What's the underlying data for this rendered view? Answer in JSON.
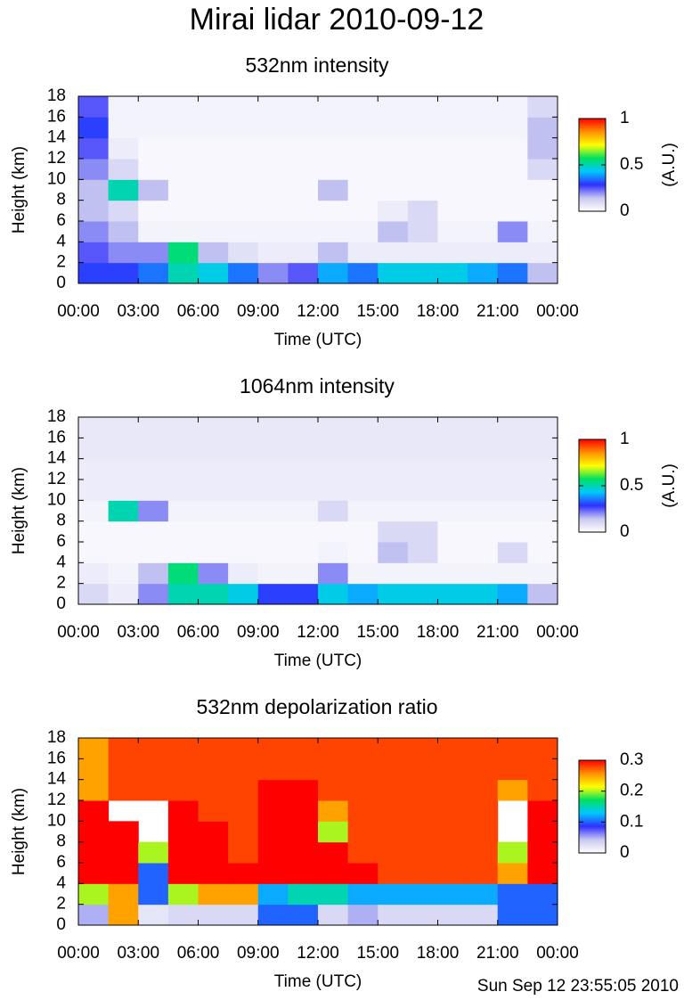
{
  "title": "Mirai lidar 2010-09-12",
  "timestamp": "Sun Sep 12 23:55:05 2010",
  "chart_data": [
    {
      "type": "heatmap",
      "title": "532nm intensity",
      "ylabel": "Height (km)",
      "xlabel": "Time (UTC)",
      "colorbar_label": "(A.U.)",
      "colormap": [
        "#ffffff",
        "#c8c8f0",
        "#3030ff",
        "#00c8ff",
        "#00e060",
        "#ffff00",
        "#ff9000",
        "#ff0000"
      ],
      "clim": [
        0,
        1
      ],
      "cticks": [
        0,
        0.5,
        1
      ],
      "xlim": [
        0,
        24
      ],
      "ylim": [
        0,
        18
      ],
      "xticks": [
        {
          "value": 0,
          "label": "00:00"
        },
        {
          "value": 3,
          "label": "03:00"
        },
        {
          "value": 6,
          "label": "06:00"
        },
        {
          "value": 9,
          "label": "09:00"
        },
        {
          "value": 12,
          "label": "12:00"
        },
        {
          "value": 15,
          "label": "15:00"
        },
        {
          "value": 18,
          "label": "18:00"
        },
        {
          "value": 21,
          "label": "21:00"
        },
        {
          "value": 24,
          "label": "00:00"
        }
      ],
      "yticks": [
        0,
        2,
        4,
        6,
        8,
        10,
        12,
        14,
        16,
        18
      ],
      "xbins": [
        0,
        1.5,
        3,
        4.5,
        6,
        7.5,
        9,
        10.5,
        12,
        13.5,
        15,
        16.5,
        18,
        19.5,
        21,
        22.5,
        24
      ],
      "ybins": [
        0,
        2,
        4,
        6,
        8,
        10,
        12,
        14,
        16,
        18
      ],
      "values": [
        [
          0.3,
          0.3,
          0.35,
          0.5,
          0.45,
          0.35,
          0.2,
          0.25,
          0.4,
          0.35,
          0.45,
          0.45,
          0.45,
          0.4,
          0.35,
          0.15
        ],
        [
          0.25,
          0.2,
          0.2,
          0.55,
          0.15,
          0.08,
          0.05,
          0.05,
          0.15,
          0.05,
          0.05,
          0.05,
          0.05,
          0.05,
          0.05,
          0.05
        ],
        [
          0.2,
          0.15,
          0.03,
          0.03,
          0.03,
          0.03,
          0.03,
          0.03,
          0.03,
          0.03,
          0.15,
          0.1,
          0.03,
          0.03,
          0.2,
          0.03
        ],
        [
          0.15,
          0.1,
          0.02,
          0.02,
          0.02,
          0.02,
          0.02,
          0.02,
          0.02,
          0.02,
          0.05,
          0.1,
          0.02,
          0.02,
          0.02,
          0.02
        ],
        [
          0.15,
          0.5,
          0.15,
          0.02,
          0.02,
          0.02,
          0.02,
          0.02,
          0.15,
          0.02,
          0.02,
          0.02,
          0.02,
          0.02,
          0.02,
          0.02
        ],
        [
          0.2,
          0.1,
          0.02,
          0.02,
          0.02,
          0.02,
          0.02,
          0.02,
          0.02,
          0.02,
          0.02,
          0.02,
          0.02,
          0.02,
          0.02,
          0.1
        ],
        [
          0.25,
          0.05,
          0.02,
          0.02,
          0.02,
          0.02,
          0.02,
          0.02,
          0.02,
          0.02,
          0.02,
          0.02,
          0.02,
          0.02,
          0.02,
          0.15
        ],
        [
          0.3,
          0.03,
          0.03,
          0.03,
          0.03,
          0.03,
          0.03,
          0.03,
          0.03,
          0.03,
          0.03,
          0.03,
          0.03,
          0.03,
          0.03,
          0.15
        ],
        [
          0.25,
          0.03,
          0.03,
          0.03,
          0.03,
          0.03,
          0.03,
          0.03,
          0.03,
          0.03,
          0.03,
          0.03,
          0.03,
          0.03,
          0.03,
          0.1
        ]
      ]
    },
    {
      "type": "heatmap",
      "title": "1064nm intensity",
      "ylabel": "Height (km)",
      "xlabel": "Time (UTC)",
      "colorbar_label": "(A.U.)",
      "colormap": [
        "#ffffff",
        "#c8c8f0",
        "#3030ff",
        "#00c8ff",
        "#00e060",
        "#ffff00",
        "#ff9000",
        "#ff0000"
      ],
      "clim": [
        0,
        1
      ],
      "cticks": [
        0,
        0.5,
        1
      ],
      "xlim": [
        0,
        24
      ],
      "ylim": [
        0,
        18
      ],
      "xticks": [
        {
          "value": 0,
          "label": "00:00"
        },
        {
          "value": 3,
          "label": "03:00"
        },
        {
          "value": 6,
          "label": "06:00"
        },
        {
          "value": 9,
          "label": "09:00"
        },
        {
          "value": 12,
          "label": "12:00"
        },
        {
          "value": 15,
          "label": "15:00"
        },
        {
          "value": 18,
          "label": "18:00"
        },
        {
          "value": 21,
          "label": "21:00"
        },
        {
          "value": 24,
          "label": "00:00"
        }
      ],
      "yticks": [
        0,
        2,
        4,
        6,
        8,
        10,
        12,
        14,
        16,
        18
      ],
      "xbins": [
        0,
        1.5,
        3,
        4.5,
        6,
        7.5,
        9,
        10.5,
        12,
        13.5,
        15,
        16.5,
        18,
        19.5,
        21,
        22.5,
        24
      ],
      "ybins": [
        0,
        2,
        4,
        6,
        8,
        10,
        12,
        14,
        16,
        18
      ],
      "values": [
        [
          0.1,
          0.05,
          0.2,
          0.5,
          0.5,
          0.45,
          0.3,
          0.3,
          0.45,
          0.4,
          0.45,
          0.45,
          0.45,
          0.45,
          0.4,
          0.15
        ],
        [
          0.05,
          0.03,
          0.15,
          0.55,
          0.2,
          0.05,
          0.03,
          0.03,
          0.2,
          0.03,
          0.03,
          0.03,
          0.03,
          0.03,
          0.03,
          0.03
        ],
        [
          0.02,
          0.02,
          0.02,
          0.02,
          0.02,
          0.02,
          0.02,
          0.02,
          0.03,
          0.02,
          0.15,
          0.1,
          0.02,
          0.02,
          0.1,
          0.02
        ],
        [
          0.02,
          0.02,
          0.02,
          0.02,
          0.02,
          0.02,
          0.02,
          0.02,
          0.02,
          0.02,
          0.1,
          0.1,
          0.02,
          0.02,
          0.02,
          0.02
        ],
        [
          0.03,
          0.5,
          0.2,
          0.03,
          0.03,
          0.03,
          0.03,
          0.03,
          0.1,
          0.03,
          0.03,
          0.03,
          0.03,
          0.03,
          0.03,
          0.03
        ],
        [
          0.05,
          0.05,
          0.05,
          0.05,
          0.05,
          0.05,
          0.05,
          0.05,
          0.05,
          0.05,
          0.05,
          0.05,
          0.05,
          0.05,
          0.05,
          0.05
        ],
        [
          0.05,
          0.05,
          0.05,
          0.05,
          0.05,
          0.05,
          0.05,
          0.05,
          0.05,
          0.05,
          0.05,
          0.05,
          0.05,
          0.05,
          0.05,
          0.05
        ],
        [
          0.06,
          0.06,
          0.06,
          0.06,
          0.06,
          0.06,
          0.06,
          0.06,
          0.06,
          0.06,
          0.06,
          0.06,
          0.06,
          0.06,
          0.06,
          0.06
        ],
        [
          0.06,
          0.06,
          0.06,
          0.06,
          0.06,
          0.06,
          0.06,
          0.06,
          0.06,
          0.06,
          0.06,
          0.06,
          0.06,
          0.06,
          0.06,
          0.06
        ]
      ]
    },
    {
      "type": "heatmap",
      "title": "532nm depolarization ratio",
      "ylabel": "Height (km)",
      "xlabel": "Time (UTC)",
      "colormap": [
        "#ffffff",
        "#c8c8f0",
        "#3030ff",
        "#00c8ff",
        "#00e060",
        "#ffff00",
        "#ff9000",
        "#ff0000"
      ],
      "clim": [
        0,
        0.3
      ],
      "cticks": [
        0,
        0.1,
        0.2,
        0.3
      ],
      "xlim": [
        0,
        24
      ],
      "ylim": [
        0,
        18
      ],
      "xticks": [
        {
          "value": 0,
          "label": "00:00"
        },
        {
          "value": 3,
          "label": "03:00"
        },
        {
          "value": 6,
          "label": "06:00"
        },
        {
          "value": 9,
          "label": "09:00"
        },
        {
          "value": 12,
          "label": "12:00"
        },
        {
          "value": 15,
          "label": "15:00"
        },
        {
          "value": 18,
          "label": "18:00"
        },
        {
          "value": 21,
          "label": "21:00"
        },
        {
          "value": 24,
          "label": "00:00"
        }
      ],
      "yticks": [
        0,
        2,
        4,
        6,
        8,
        10,
        12,
        14,
        16,
        18
      ],
      "xbins": [
        0,
        1.5,
        3,
        4.5,
        6,
        7.5,
        9,
        10.5,
        12,
        13.5,
        15,
        16.5,
        18,
        19.5,
        21,
        22.5,
        24
      ],
      "ybins": [
        0,
        2,
        4,
        6,
        8,
        10,
        12,
        14,
        16,
        18
      ],
      "values": [
        [
          0.05,
          0.25,
          0.02,
          0.03,
          0.03,
          0.03,
          0.1,
          0.1,
          0.03,
          0.05,
          0.03,
          0.03,
          0.03,
          0.03,
          0.1,
          0.1
        ],
        [
          0.2,
          0.25,
          0.1,
          0.2,
          0.25,
          0.25,
          0.12,
          0.15,
          0.15,
          0.12,
          0.12,
          0.12,
          0.12,
          0.12,
          0.1,
          0.1
        ],
        [
          0.3,
          0.3,
          0.1,
          0.3,
          0.3,
          0.3,
          0.3,
          0.3,
          0.3,
          0.3,
          0.28,
          0.28,
          0.28,
          0.28,
          0.25,
          0.3
        ],
        [
          0.3,
          0.3,
          0.2,
          0.3,
          0.3,
          0.28,
          0.3,
          0.3,
          0.3,
          0.28,
          0.28,
          0.28,
          0.28,
          0.28,
          0.2,
          0.3
        ],
        [
          0.3,
          0.3,
          null,
          0.3,
          0.3,
          0.28,
          0.3,
          0.3,
          0.2,
          0.28,
          0.28,
          0.28,
          0.28,
          0.28,
          null,
          0.3
        ],
        [
          0.3,
          null,
          null,
          0.3,
          0.28,
          0.28,
          0.3,
          0.3,
          0.25,
          0.28,
          0.28,
          0.28,
          0.28,
          0.28,
          null,
          0.3
        ],
        [
          0.25,
          0.28,
          0.28,
          0.28,
          0.28,
          0.28,
          0.3,
          0.3,
          0.28,
          0.28,
          0.28,
          0.28,
          0.28,
          0.28,
          0.25,
          0.28
        ],
        [
          0.25,
          0.28,
          0.28,
          0.28,
          0.28,
          0.28,
          0.28,
          0.28,
          0.28,
          0.28,
          0.28,
          0.28,
          0.28,
          0.28,
          0.28,
          0.28
        ],
        [
          0.25,
          0.28,
          0.28,
          0.28,
          0.28,
          0.28,
          0.28,
          0.28,
          0.28,
          0.28,
          0.28,
          0.28,
          0.28,
          0.28,
          0.28,
          0.28
        ]
      ]
    }
  ]
}
